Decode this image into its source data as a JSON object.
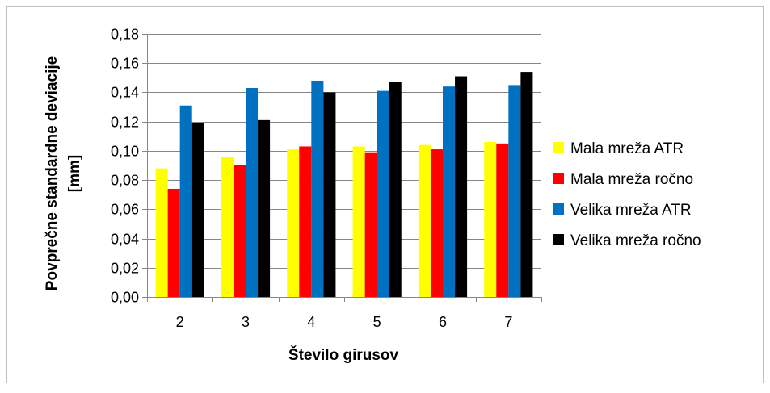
{
  "chart_data": {
    "type": "bar",
    "title": "",
    "xlabel": "Število girusov",
    "ylabel_line1": "Povprečne standardne deviacije",
    "ylabel_line2": "[mm]",
    "ylim": [
      0,
      0.18
    ],
    "yticks": [
      "0,00",
      "0,02",
      "0,04",
      "0,06",
      "0,08",
      "0,10",
      "0,12",
      "0,14",
      "0,16",
      "0,18"
    ],
    "categories": [
      "2",
      "3",
      "4",
      "5",
      "6",
      "7"
    ],
    "grid": true,
    "legend_position": "right",
    "series": [
      {
        "name": "Mala mreža ATR",
        "color": "#ffff00",
        "values": [
          0.088,
          0.096,
          0.101,
          0.103,
          0.104,
          0.106
        ]
      },
      {
        "name": "Mala mreža ročno",
        "color": "#ff0000",
        "values": [
          0.074,
          0.09,
          0.103,
          0.099,
          0.101,
          0.105
        ]
      },
      {
        "name": "Velika mreža ATR",
        "color": "#0070c0",
        "values": [
          0.131,
          0.143,
          0.148,
          0.141,
          0.144,
          0.145
        ]
      },
      {
        "name": "Velika mreža ročno",
        "color": "#000000",
        "values": [
          0.119,
          0.121,
          0.14,
          0.147,
          0.151,
          0.154
        ]
      }
    ]
  }
}
